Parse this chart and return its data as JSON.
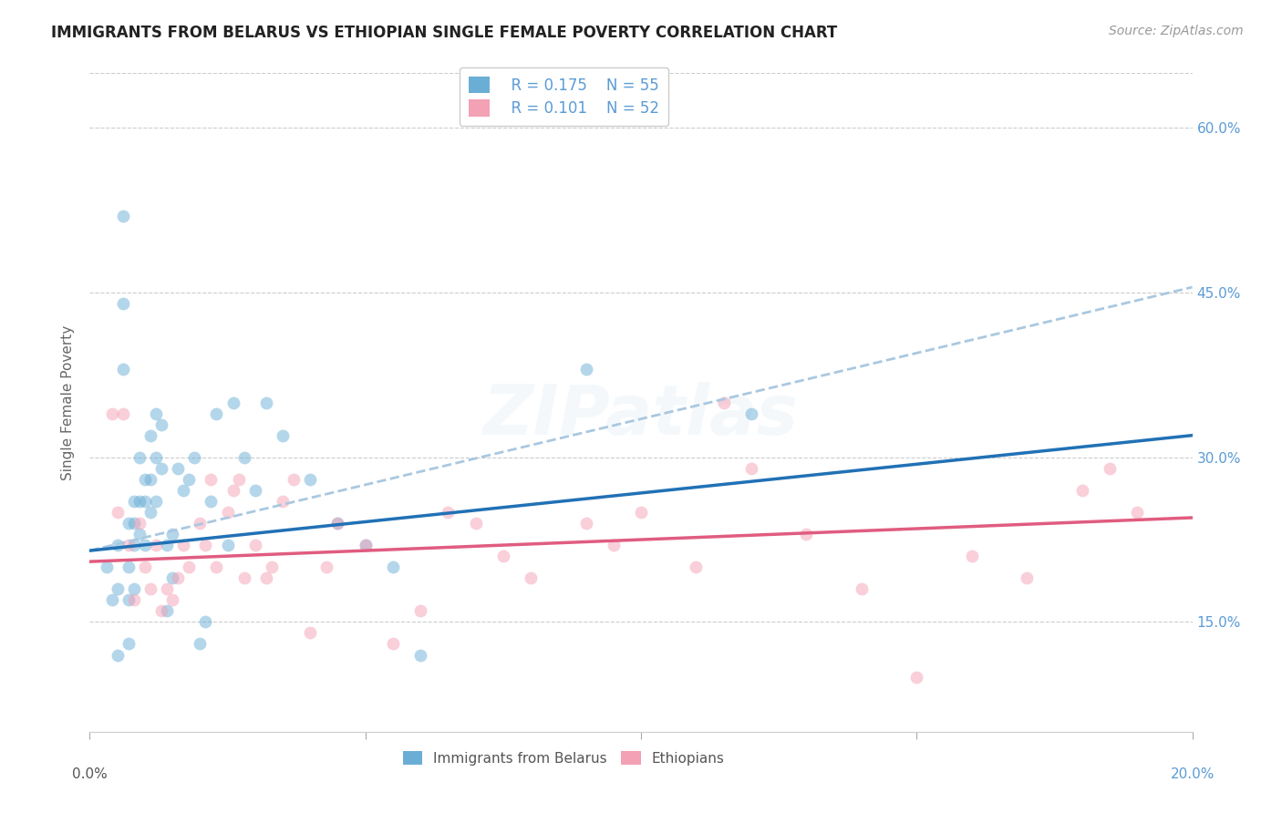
{
  "title": "IMMIGRANTS FROM BELARUS VS ETHIOPIAN SINGLE FEMALE POVERTY CORRELATION CHART",
  "source": "Source: ZipAtlas.com",
  "ylabel": "Single Female Poverty",
  "ytick_labels": [
    "15.0%",
    "30.0%",
    "45.0%",
    "60.0%"
  ],
  "ytick_values": [
    15.0,
    30.0,
    45.0,
    60.0
  ],
  "xlim": [
    0.0,
    20.0
  ],
  "ylim": [
    5.0,
    65.0
  ],
  "legend_blue_R": "R = 0.175",
  "legend_blue_N": "N = 55",
  "legend_pink_R": "R = 0.101",
  "legend_pink_N": "N = 52",
  "blue_color": "#6aaed6",
  "pink_color": "#f4a0b5",
  "blue_line_color": "#2171b5",
  "pink_line_color": "#e05c80",
  "dashed_line_color": "#aac8e0",
  "watermark": "ZIPatlas",
  "blue_scatter_x": [
    0.3,
    0.4,
    0.5,
    0.5,
    0.6,
    0.6,
    0.6,
    0.7,
    0.7,
    0.7,
    0.7,
    0.8,
    0.8,
    0.8,
    0.8,
    0.9,
    0.9,
    0.9,
    1.0,
    1.0,
    1.0,
    1.1,
    1.1,
    1.1,
    1.2,
    1.2,
    1.2,
    1.3,
    1.3,
    1.4,
    1.4,
    1.5,
    1.5,
    1.6,
    1.7,
    1.8,
    1.9,
    2.0,
    2.1,
    2.2,
    2.3,
    2.5,
    2.6,
    2.8,
    3.0,
    3.2,
    3.5,
    4.0,
    4.5,
    5.0,
    5.5,
    6.0,
    9.0,
    12.0,
    0.5
  ],
  "blue_scatter_y": [
    20.0,
    17.0,
    22.0,
    18.0,
    52.0,
    44.0,
    38.0,
    24.0,
    20.0,
    17.0,
    13.0,
    26.0,
    24.0,
    22.0,
    18.0,
    30.0,
    26.0,
    23.0,
    28.0,
    26.0,
    22.0,
    32.0,
    28.0,
    25.0,
    34.0,
    30.0,
    26.0,
    33.0,
    29.0,
    22.0,
    16.0,
    23.0,
    19.0,
    29.0,
    27.0,
    28.0,
    30.0,
    13.0,
    15.0,
    26.0,
    34.0,
    22.0,
    35.0,
    30.0,
    27.0,
    35.0,
    32.0,
    28.0,
    24.0,
    22.0,
    20.0,
    12.0,
    38.0,
    34.0,
    12.0
  ],
  "pink_scatter_x": [
    0.4,
    0.5,
    0.6,
    0.7,
    0.8,
    0.9,
    1.0,
    1.1,
    1.2,
    1.3,
    1.4,
    1.5,
    1.6,
    1.7,
    1.8,
    2.0,
    2.1,
    2.2,
    2.3,
    2.5,
    2.6,
    2.7,
    2.8,
    3.0,
    3.2,
    3.3,
    3.5,
    3.7,
    4.0,
    4.3,
    4.5,
    5.0,
    5.5,
    6.0,
    6.5,
    7.0,
    7.5,
    8.0,
    9.0,
    9.5,
    10.0,
    11.0,
    11.5,
    12.0,
    13.0,
    14.0,
    15.0,
    16.0,
    17.0,
    18.0,
    18.5,
    19.0
  ],
  "pink_scatter_y": [
    34.0,
    25.0,
    34.0,
    22.0,
    17.0,
    24.0,
    20.0,
    18.0,
    22.0,
    16.0,
    18.0,
    17.0,
    19.0,
    22.0,
    20.0,
    24.0,
    22.0,
    28.0,
    20.0,
    25.0,
    27.0,
    28.0,
    19.0,
    22.0,
    19.0,
    20.0,
    26.0,
    28.0,
    14.0,
    20.0,
    24.0,
    22.0,
    13.0,
    16.0,
    25.0,
    24.0,
    21.0,
    19.0,
    24.0,
    22.0,
    25.0,
    20.0,
    35.0,
    29.0,
    23.0,
    18.0,
    10.0,
    21.0,
    19.0,
    27.0,
    29.0,
    25.0
  ],
  "blue_trendline_x": [
    0.0,
    20.0
  ],
  "blue_trendline_y": [
    21.5,
    32.0
  ],
  "pink_trendline_y": [
    20.5,
    24.5
  ],
  "dashed_trendline_y": [
    21.5,
    45.5
  ],
  "title_fontsize": 12,
  "source_fontsize": 10,
  "axis_label_fontsize": 11,
  "tick_fontsize": 11,
  "legend_fontsize": 12,
  "watermark_fontsize": 55,
  "watermark_alpha": 0.12,
  "marker_size": 100,
  "marker_alpha": 0.5,
  "background_color": "#ffffff",
  "grid_color": "#cccccc",
  "right_tick_color": "#5b9bd5",
  "ylabel_color": "#666666",
  "title_color": "#222222",
  "source_color": "#999999",
  "bottom_label_color": "#555555",
  "bottom_right_label_color": "#5b9bd5"
}
